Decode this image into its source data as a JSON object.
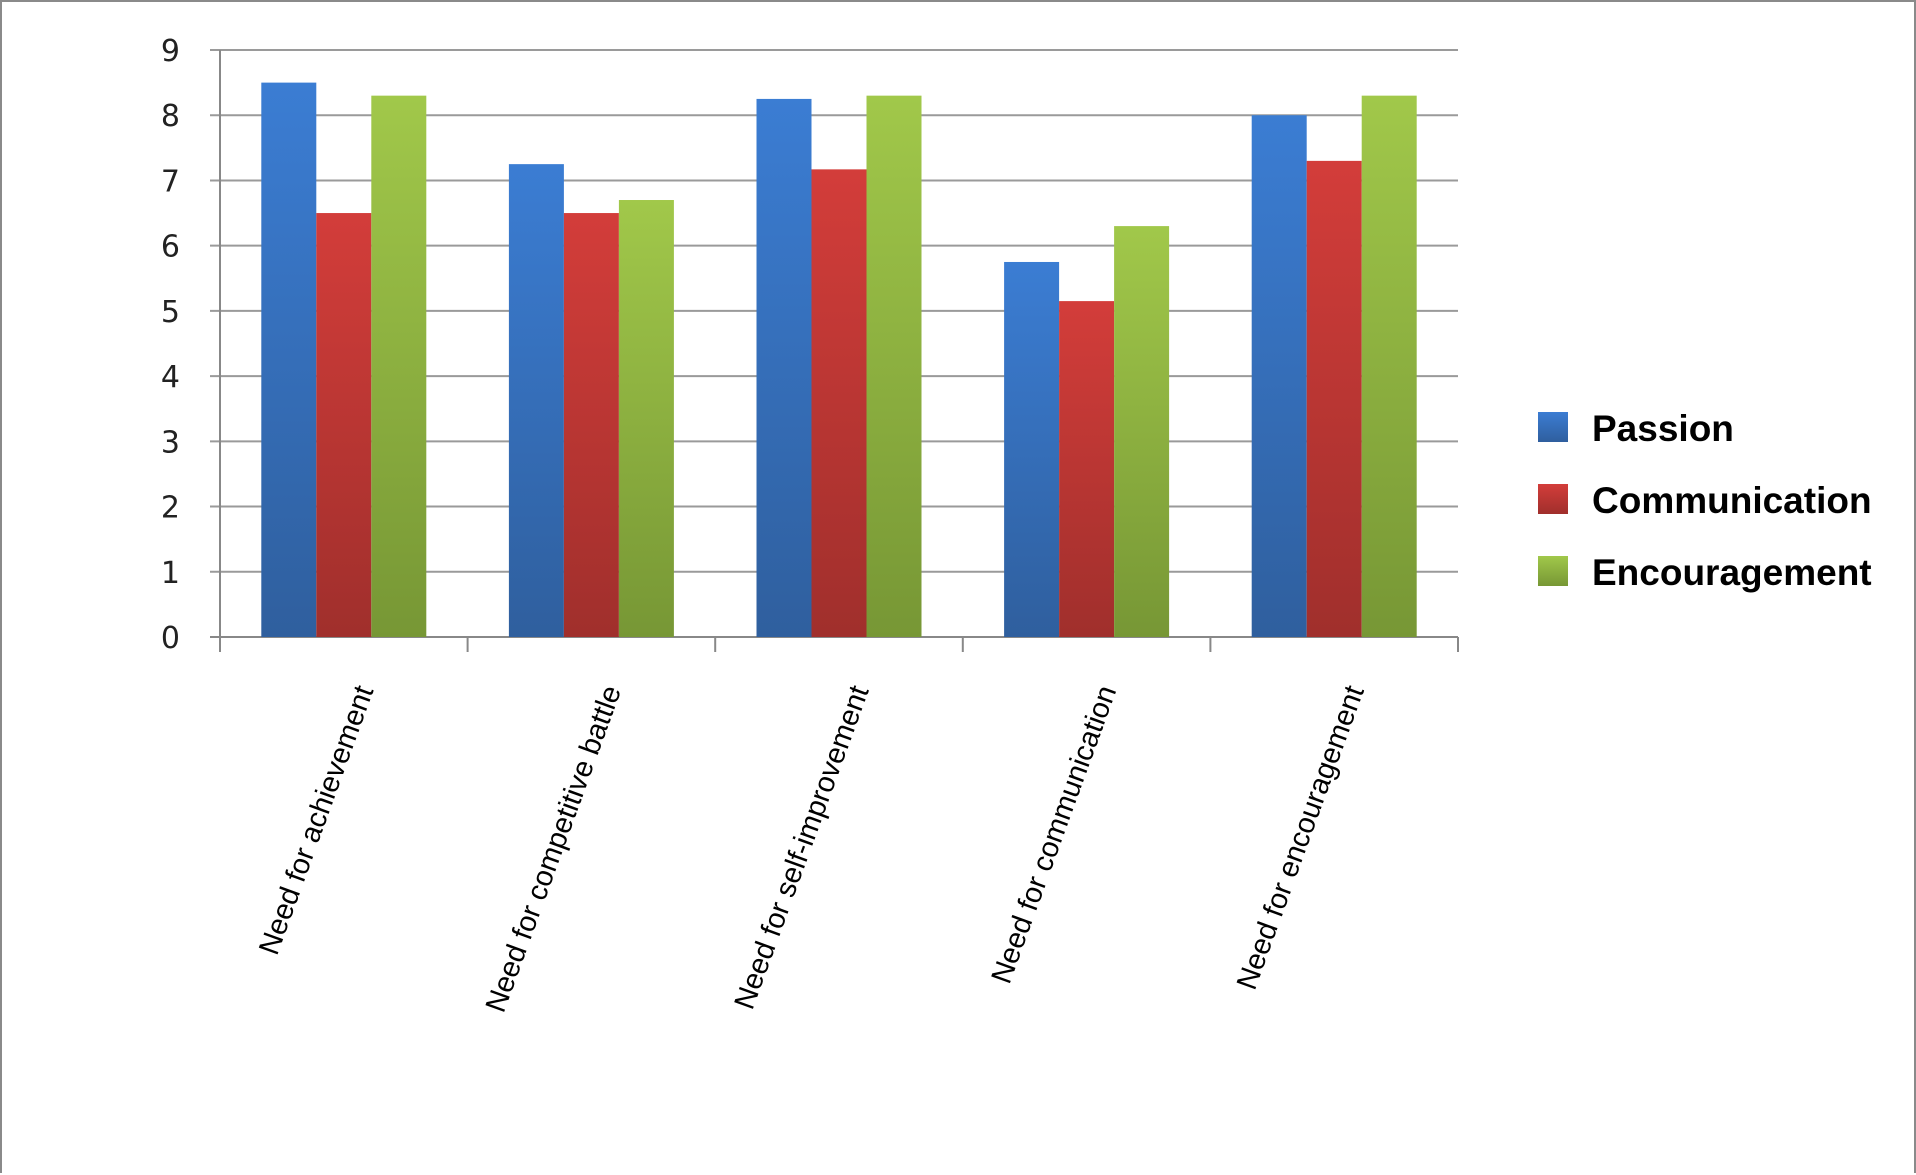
{
  "chart_data": {
    "type": "bar",
    "title": "",
    "xlabel": "",
    "ylabel": "",
    "ylim": [
      0,
      9
    ],
    "yticks": [
      "0",
      "1",
      "2",
      "3",
      "4",
      "5",
      "6",
      "7",
      "8",
      "9"
    ],
    "grid": true,
    "legend_position": "right",
    "categories": [
      "Need for achievement",
      "Need for competitive battle",
      "Need for self-improvement",
      "Need for communication",
      "Need for encouragement"
    ],
    "series": [
      {
        "name": "Passion",
        "color": "#3a78c8",
        "values": [
          8.5,
          7.25,
          8.25,
          5.75,
          8.0
        ]
      },
      {
        "name": "Communication",
        "color": "#cc3b38",
        "values": [
          6.5,
          6.5,
          7.17,
          5.15,
          7.3
        ]
      },
      {
        "name": "Encouragement",
        "color": "#99c245",
        "values": [
          8.3,
          6.7,
          8.3,
          6.3,
          8.3
        ]
      }
    ]
  }
}
